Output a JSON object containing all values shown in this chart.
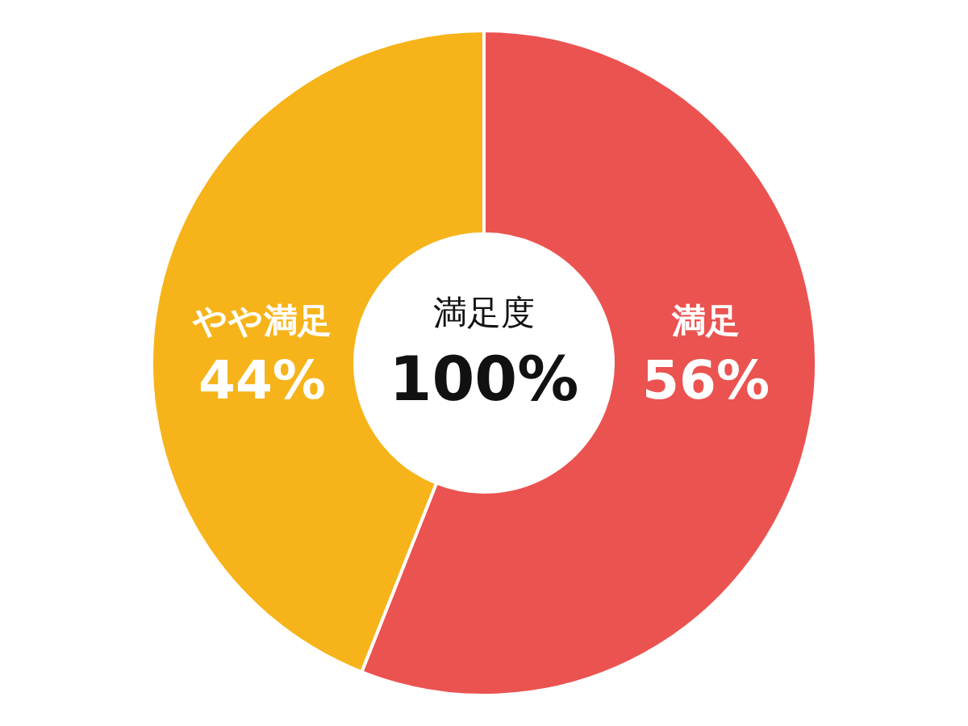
{
  "chart_data": {
    "type": "donut",
    "categories": [
      "満足",
      "やや満足"
    ],
    "values": [
      56,
      44
    ],
    "colors": [
      "#EB5350",
      "#F6B41A"
    ],
    "value_labels": [
      "56%",
      "44%"
    ],
    "annotations": [
      "満足度",
      "100%"
    ]
  }
}
